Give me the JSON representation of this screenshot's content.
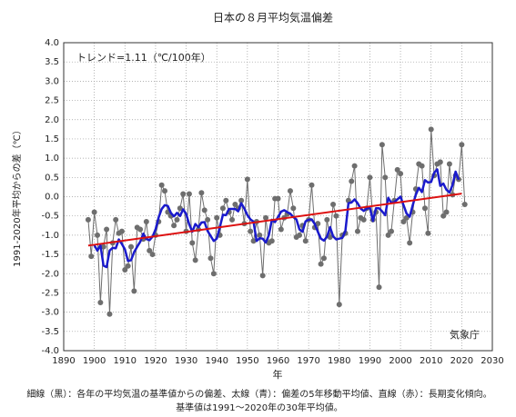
{
  "chart_data": {
    "type": "line",
    "title": "日本の８月平均気温偏差",
    "annotation": "トレンド=1.11（℃/100年）",
    "ylabel": "1991-2020年平均からの差（℃）",
    "xlabel": "年",
    "source": "気象庁",
    "footnote": [
      "細線（黒）：各年の平均気温の基準値からの偏差、太線（青）：偏差の5年移動平均値、直線（赤）：長期変化傾向。",
      "基準値は1991〜2020年の30年平均値。"
    ],
    "xlim": [
      1890,
      2030
    ],
    "xticks": [
      1890,
      1900,
      1910,
      1920,
      1930,
      1940,
      1950,
      1960,
      1970,
      1980,
      1990,
      2000,
      2010,
      2020,
      2030
    ],
    "ylim": [
      -4,
      4
    ],
    "yticks": [
      {
        "value": 4,
        "label": "4.0"
      },
      3.5,
      {
        "value": 3,
        "label": "3.0"
      },
      2.5,
      {
        "value": 2,
        "label": "2.0"
      },
      1.5,
      {
        "value": 1,
        "label": "1.0"
      },
      0.5,
      {
        "value": 0,
        "label": "0.0"
      },
      -0.5,
      {
        "value": -1,
        "label": "-1.0"
      },
      -1.5,
      {
        "value": -2,
        "label": "-2.0"
      },
      -2.5,
      {
        "value": -3,
        "label": "-3.0"
      },
      -3.5,
      {
        "value": -4,
        "label": "-4.0"
      }
    ],
    "grid": true,
    "x": [
      1898,
      1899,
      1900,
      1901,
      1902,
      1903,
      1904,
      1905,
      1906,
      1907,
      1908,
      1909,
      1910,
      1911,
      1912,
      1913,
      1914,
      1915,
      1916,
      1917,
      1918,
      1919,
      1920,
      1921,
      1922,
      1923,
      1924,
      1925,
      1926,
      1927,
      1928,
      1929,
      1930,
      1931,
      1932,
      1933,
      1934,
      1935,
      1936,
      1937,
      1938,
      1939,
      1940,
      1941,
      1942,
      1943,
      1944,
      1945,
      1946,
      1947,
      1948,
      1949,
      1950,
      1951,
      1952,
      1953,
      1954,
      1955,
      1956,
      1957,
      1958,
      1959,
      1960,
      1961,
      1962,
      1963,
      1964,
      1965,
      1966,
      1967,
      1968,
      1969,
      1970,
      1971,
      1972,
      1973,
      1974,
      1975,
      1976,
      1977,
      1978,
      1979,
      1980,
      1981,
      1982,
      1983,
      1984,
      1985,
      1986,
      1987,
      1988,
      1989,
      1990,
      1991,
      1992,
      1993,
      1994,
      1995,
      1996,
      1997,
      1998,
      1999,
      2000,
      2001,
      2002,
      2003,
      2004,
      2005,
      2006,
      2007,
      2008,
      2009,
      2010,
      2011,
      2012,
      2013,
      2014,
      2015,
      2016,
      2017,
      2018,
      2019,
      2020,
      2021
    ],
    "series": [
      {
        "color": "#6e6e6e",
        "values": [
          -0.6,
          -1.55,
          -0.4,
          -1.0,
          -2.75,
          -1.3,
          -0.85,
          -3.05,
          -1.2,
          -0.6,
          -0.95,
          -0.9,
          -1.9,
          -1.8,
          -1.3,
          -2.45,
          -0.8,
          -0.85,
          -1.1,
          -0.65,
          -1.4,
          -1.5,
          -1.0,
          -0.65,
          0.3,
          0.15,
          -0.4,
          -0.5,
          -0.75,
          -0.6,
          -0.3,
          0.07,
          -0.9,
          0.07,
          -1.2,
          -1.65,
          -0.85,
          0.1,
          -0.35,
          -0.6,
          -1.6,
          -2.0,
          -0.55,
          -1.0,
          -0.3,
          -0.1,
          -0.4,
          -0.6,
          -0.2,
          -0.3,
          -0.1,
          -0.7,
          0.45,
          -0.9,
          -1.15,
          -0.65,
          -1.0,
          -2.05,
          -0.55,
          -1.2,
          -1.15,
          -0.05,
          -0.05,
          -0.85,
          -0.55,
          -0.45,
          0.15,
          -0.3,
          -1.05,
          -1.0,
          -0.75,
          -1.15,
          -0.6,
          0.3,
          -0.8,
          -0.7,
          -1.75,
          -1.6,
          -0.6,
          -1.05,
          -0.2,
          -0.5,
          -2.8,
          -1.0,
          -0.95,
          -0.1,
          0.4,
          0.8,
          -0.9,
          -0.55,
          -0.6,
          -0.3,
          0.5,
          -0.6,
          -0.4,
          -2.35,
          1.35,
          0.5,
          -1.0,
          -0.9,
          -0.1,
          0.7,
          0.6,
          -0.65,
          -0.55,
          -1.2,
          -0.4,
          0.2,
          0.85,
          0.8,
          -0.3,
          -0.95,
          1.75,
          0.55,
          0.85,
          0.9,
          -0.5,
          -0.4,
          0.85,
          0.05,
          0.55,
          0.45,
          1.35,
          -0.2
        ]
      },
      {
        "color": "#1a1acc",
        "values": [
          null,
          null,
          -1.26,
          -1.4,
          -1.26,
          -1.79,
          -1.83,
          -1.4,
          -1.33,
          -1.34,
          -1.11,
          -1.23,
          -1.37,
          -1.67,
          -1.65,
          -1.44,
          -1.3,
          -1.17,
          -0.96,
          -1.1,
          -1.13,
          -1.04,
          -0.85,
          -0.54,
          -0.32,
          -0.22,
          -0.24,
          -0.42,
          -0.51,
          -0.42,
          -0.5,
          -0.33,
          -0.45,
          -0.72,
          -0.91,
          -0.71,
          -0.79,
          -0.67,
          -0.66,
          -0.89,
          -1.02,
          -1.15,
          -1.09,
          -0.79,
          -0.47,
          -0.48,
          -0.32,
          -0.32,
          -0.32,
          -0.38,
          -0.17,
          -0.31,
          -0.48,
          -0.59,
          -0.65,
          -1.15,
          -1.08,
          -1.09,
          -1.19,
          -1.0,
          -0.6,
          -0.66,
          -0.53,
          -0.39,
          -0.35,
          -0.4,
          -0.44,
          -0.53,
          -0.59,
          -0.85,
          -0.91,
          -0.64,
          -0.6,
          -0.59,
          -0.71,
          -0.91,
          -1.09,
          -1.14,
          -1.04,
          -0.79,
          -1.03,
          -1.11,
          -1.09,
          -1.07,
          -0.89,
          -0.17,
          -0.15,
          -0.07,
          -0.17,
          -0.31,
          -0.37,
          -0.31,
          -0.28,
          -0.63,
          -0.3,
          -0.3,
          -0.38,
          -0.48,
          -0.03,
          -0.16,
          -0.14,
          -0.07,
          0.0,
          -0.22,
          -0.44,
          -0.52,
          -0.22,
          0.05,
          0.23,
          0.12,
          0.43,
          0.37,
          0.38,
          0.62,
          0.71,
          0.28,
          0.34,
          0.18,
          0.11,
          0.3,
          0.65,
          0.44,
          null,
          null
        ]
      }
    ],
    "trend": {
      "color": "#dd1111",
      "x": [
        1898,
        2020
      ],
      "values": [
        -1.27,
        0.08
      ]
    }
  }
}
